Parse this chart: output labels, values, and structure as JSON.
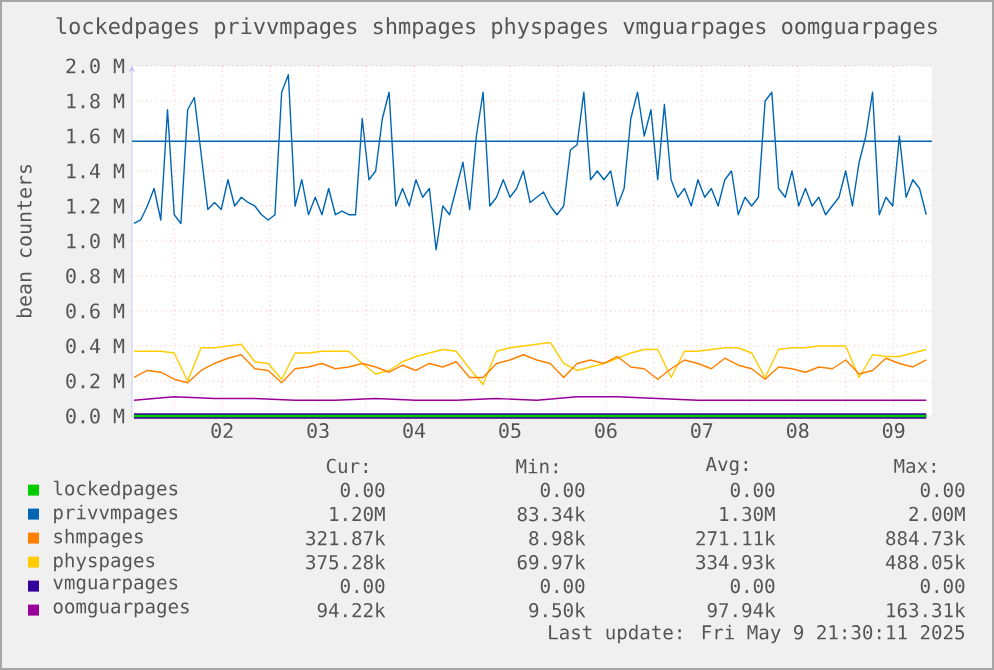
{
  "chart_data": {
    "type": "line",
    "title": "lockedpages privvmpages shmpages physpages vmguarpages oomguarpages",
    "ylabel": "bean counters",
    "xlim": [
      1.56,
      9.9
    ],
    "xticks": [
      {
        "value": 2,
        "label": null
      },
      {
        "value": 2.5,
        "label": "02"
      },
      {
        "value": 3,
        "label": null
      },
      {
        "value": 3.5,
        "label": "03"
      },
      {
        "value": 4,
        "label": null
      },
      {
        "value": 4.5,
        "label": "04"
      },
      {
        "value": 5,
        "label": null
      },
      {
        "value": 5.5,
        "label": "05"
      },
      {
        "value": 6,
        "label": null
      },
      {
        "value": 6.5,
        "label": "06"
      },
      {
        "value": 7,
        "label": null
      },
      {
        "value": 7.5,
        "label": "07"
      },
      {
        "value": 8,
        "label": null
      },
      {
        "value": 8.5,
        "label": "08"
      },
      {
        "value": 9,
        "label": null
      },
      {
        "value": 9.5,
        "label": "09"
      }
    ],
    "ylim": [
      0,
      2000000
    ],
    "yticks": [
      {
        "value": 0,
        "label": "0.0 M"
      },
      {
        "value": 200000,
        "label": "0.2 M"
      },
      {
        "value": 400000,
        "label": "0.4 M"
      },
      {
        "value": 600000,
        "label": "0.6 M"
      },
      {
        "value": 800000,
        "label": "0.8 M"
      },
      {
        "value": 1000000,
        "label": "1.0 M"
      },
      {
        "value": 1200000,
        "label": "1.2 M"
      },
      {
        "value": 1400000,
        "label": "1.4 M"
      },
      {
        "value": 1600000,
        "label": "1.6 M"
      },
      {
        "value": 1800000,
        "label": "1.8 M"
      },
      {
        "value": 2000000,
        "label": "2.0 M"
      }
    ],
    "grid": true,
    "legend": "bottom",
    "series": [
      {
        "name": "lockedpages",
        "color": "#00cc00",
        "x": [
          1.58,
          9.84
        ],
        "values": [
          0,
          0
        ]
      },
      {
        "name": "privvmpages",
        "color": "#0066b3",
        "x": [
          1.58,
          1.65,
          1.72,
          1.79,
          1.86,
          1.93,
          2.0,
          2.07,
          2.14,
          2.21,
          2.28,
          2.35,
          2.42,
          2.49,
          2.56,
          2.63,
          2.7,
          2.77,
          2.84,
          2.91,
          2.98,
          3.05,
          3.12,
          3.19,
          3.26,
          3.33,
          3.4,
          3.47,
          3.54,
          3.61,
          3.68,
          3.75,
          3.82,
          3.89,
          3.96,
          4.03,
          4.1,
          4.17,
          4.24,
          4.31,
          4.38,
          4.45,
          4.52,
          4.59,
          4.66,
          4.73,
          4.8,
          4.87,
          4.94,
          5.01,
          5.08,
          5.15,
          5.22,
          5.29,
          5.36,
          5.43,
          5.5,
          5.57,
          5.64,
          5.71,
          5.78,
          5.85,
          5.92,
          5.99,
          6.06,
          6.13,
          6.2,
          6.27,
          6.34,
          6.41,
          6.48,
          6.55,
          6.62,
          6.69,
          6.76,
          6.83,
          6.9,
          6.97,
          7.04,
          7.11,
          7.18,
          7.25,
          7.32,
          7.39,
          7.46,
          7.53,
          7.6,
          7.67,
          7.74,
          7.81,
          7.88,
          7.95,
          8.02,
          8.09,
          8.16,
          8.23,
          8.3,
          8.37,
          8.44,
          8.51,
          8.58,
          8.65,
          8.72,
          8.79,
          8.86,
          8.93,
          9.0,
          9.07,
          9.14,
          9.21,
          9.28,
          9.35,
          9.42,
          9.49,
          9.56,
          9.63,
          9.7,
          9.77,
          9.84
        ],
        "values": [
          1100000,
          1120000,
          1200000,
          1300000,
          1120000,
          1750000,
          1150000,
          1100000,
          1750000,
          1820000,
          1500000,
          1180000,
          1220000,
          1180000,
          1350000,
          1200000,
          1250000,
          1220000,
          1200000,
          1150000,
          1120000,
          1150000,
          1850000,
          1950000,
          1200000,
          1350000,
          1150000,
          1250000,
          1150000,
          1300000,
          1150000,
          1170000,
          1150000,
          1150000,
          1700000,
          1350000,
          1400000,
          1700000,
          1850000,
          1200000,
          1300000,
          1200000,
          1350000,
          1250000,
          1300000,
          950000,
          1200000,
          1150000,
          1300000,
          1450000,
          1180000,
          1600000,
          1850000,
          1200000,
          1250000,
          1350000,
          1250000,
          1300000,
          1400000,
          1220000,
          1250000,
          1280000,
          1200000,
          1150000,
          1200000,
          1520000,
          1550000,
          1850000,
          1350000,
          1400000,
          1350000,
          1400000,
          1200000,
          1300000,
          1700000,
          1850000,
          1600000,
          1750000,
          1350000,
          1780000,
          1350000,
          1250000,
          1300000,
          1200000,
          1350000,
          1250000,
          1300000,
          1200000,
          1350000,
          1400000,
          1150000,
          1250000,
          1200000,
          1250000,
          1800000,
          1850000,
          1300000,
          1250000,
          1400000,
          1200000,
          1300000,
          1200000,
          1250000,
          1150000,
          1200000,
          1250000,
          1400000,
          1200000,
          1450000,
          1600000,
          1850000,
          1150000,
          1250000,
          1200000,
          1600000,
          1250000,
          1350000,
          1300000,
          1150000
        ]
      },
      {
        "name": "shmpages",
        "color": "#ff8000",
        "x": [
          1.58,
          1.72,
          1.86,
          2.0,
          2.14,
          2.28,
          2.42,
          2.56,
          2.7,
          2.84,
          2.98,
          3.12,
          3.26,
          3.4,
          3.54,
          3.68,
          3.82,
          3.96,
          4.1,
          4.24,
          4.38,
          4.52,
          4.66,
          4.8,
          4.94,
          5.08,
          5.22,
          5.36,
          5.5,
          5.64,
          5.78,
          5.92,
          6.06,
          6.2,
          6.34,
          6.48,
          6.62,
          6.76,
          6.9,
          7.04,
          7.18,
          7.32,
          7.46,
          7.6,
          7.74,
          7.88,
          8.02,
          8.16,
          8.3,
          8.44,
          8.58,
          8.72,
          8.86,
          9.0,
          9.14,
          9.28,
          9.42,
          9.56,
          9.7,
          9.84
        ],
        "values": [
          220000,
          260000,
          250000,
          210000,
          190000,
          260000,
          300000,
          330000,
          350000,
          270000,
          260000,
          190000,
          270000,
          280000,
          300000,
          270000,
          280000,
          300000,
          280000,
          250000,
          290000,
          260000,
          300000,
          280000,
          310000,
          220000,
          220000,
          300000,
          320000,
          350000,
          320000,
          300000,
          220000,
          300000,
          320000,
          300000,
          340000,
          280000,
          270000,
          210000,
          270000,
          320000,
          300000,
          270000,
          330000,
          290000,
          270000,
          210000,
          280000,
          270000,
          250000,
          280000,
          270000,
          320000,
          240000,
          260000,
          330000,
          300000,
          280000,
          320000
        ]
      },
      {
        "name": "physpages",
        "color": "#ffcc00",
        "x": [
          1.58,
          1.72,
          1.86,
          2.0,
          2.14,
          2.28,
          2.42,
          2.56,
          2.7,
          2.84,
          2.98,
          3.12,
          3.26,
          3.4,
          3.54,
          3.68,
          3.82,
          3.96,
          4.1,
          4.24,
          4.38,
          4.52,
          4.66,
          4.8,
          4.94,
          5.08,
          5.22,
          5.36,
          5.5,
          5.64,
          5.78,
          5.92,
          6.06,
          6.2,
          6.34,
          6.48,
          6.62,
          6.76,
          6.9,
          7.04,
          7.18,
          7.32,
          7.46,
          7.6,
          7.74,
          7.88,
          8.02,
          8.16,
          8.3,
          8.44,
          8.58,
          8.72,
          8.86,
          9.0,
          9.14,
          9.28,
          9.42,
          9.56,
          9.7,
          9.84
        ],
        "values": [
          370000,
          370000,
          370000,
          360000,
          200000,
          390000,
          390000,
          400000,
          410000,
          310000,
          300000,
          210000,
          360000,
          360000,
          370000,
          370000,
          370000,
          300000,
          240000,
          260000,
          310000,
          340000,
          360000,
          380000,
          370000,
          270000,
          180000,
          370000,
          390000,
          400000,
          410000,
          420000,
          300000,
          260000,
          280000,
          300000,
          330000,
          360000,
          380000,
          380000,
          220000,
          370000,
          370000,
          380000,
          390000,
          390000,
          360000,
          220000,
          380000,
          390000,
          390000,
          400000,
          400000,
          400000,
          220000,
          350000,
          340000,
          340000,
          360000,
          380000
        ]
      },
      {
        "name": "vmguarpages",
        "color": "#330099",
        "x": [
          1.58,
          9.84
        ],
        "values": [
          0,
          0
        ]
      },
      {
        "name": "oomguarpages",
        "color": "#990099",
        "x": [
          1.58,
          2.0,
          2.42,
          2.84,
          3.26,
          3.68,
          4.1,
          4.52,
          4.94,
          5.36,
          5.78,
          6.2,
          6.62,
          7.04,
          7.46,
          7.88,
          8.3,
          8.72,
          9.14,
          9.56,
          9.84
        ],
        "values": [
          90000,
          110000,
          100000,
          100000,
          90000,
          90000,
          100000,
          90000,
          90000,
          100000,
          90000,
          110000,
          110000,
          100000,
          90000,
          90000,
          90000,
          90000,
          90000,
          90000,
          90000
        ]
      }
    ],
    "ref_lines": [
      {
        "axis": "y",
        "value": 1570000,
        "color": "#0066b3"
      }
    ],
    "annotations": [
      "Cur:",
      "Min:",
      "Avg:",
      "Max:",
      "0.00",
      "0.00",
      "0.00",
      "0.00",
      "1.20M",
      "83.34k",
      "1.30M",
      "2.00M",
      "321.87k",
      "8.98k",
      "271.11k",
      "884.73k",
      "375.28k",
      "69.97k",
      "334.93k",
      "488.05k",
      "0.00",
      "0.00",
      "0.00",
      "0.00",
      "94.22k",
      "9.50k",
      "97.94k",
      "163.31k",
      "Last update: Fri May  9 21:30:11 2025"
    ]
  }
}
